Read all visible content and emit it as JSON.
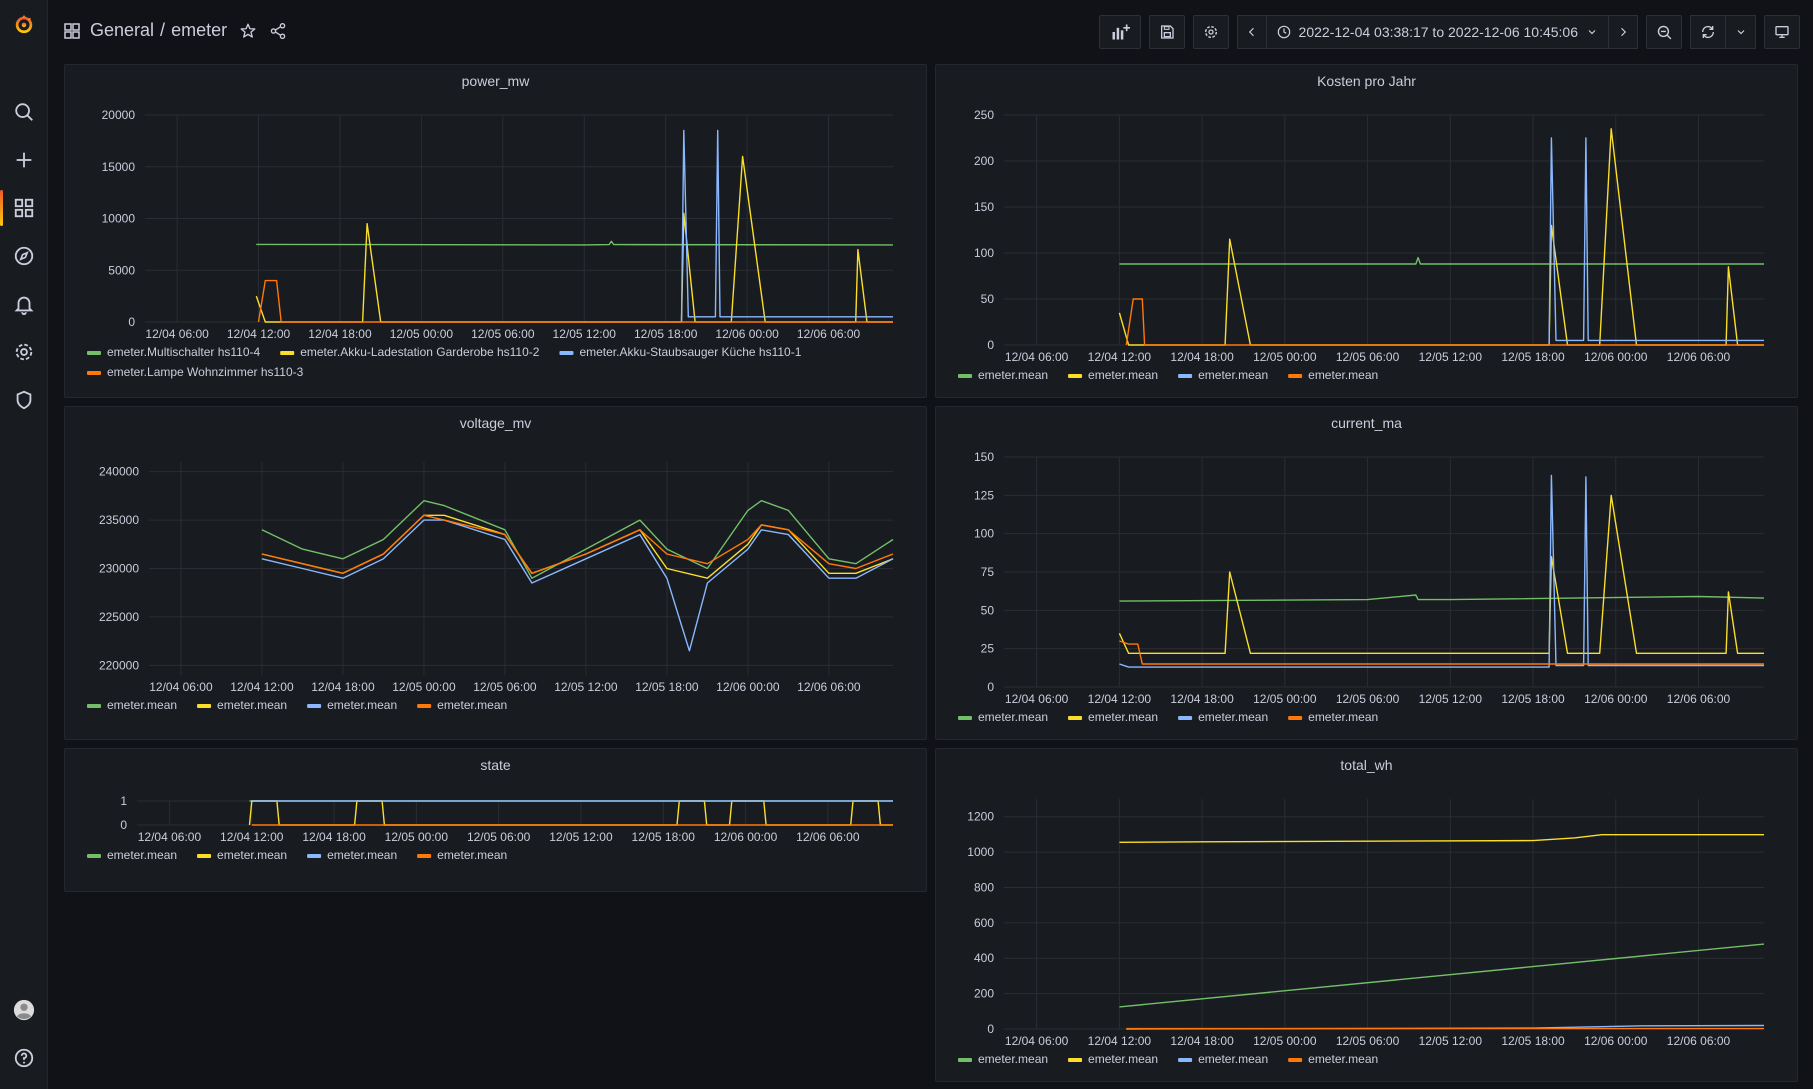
{
  "breadcrumb": {
    "folder": "General",
    "separator": "/",
    "dashboard": "emeter"
  },
  "time_range": {
    "label": "2022-12-04 03:38:17 to 2022-12-06 10:45:06"
  },
  "colors": {
    "green": "#73bf69",
    "yellow": "#fade2a",
    "blue": "#8ab8ff",
    "orange": "#ff780a"
  },
  "sidemenu": {
    "items": [
      {
        "name": "search-icon"
      },
      {
        "name": "plus-icon"
      },
      {
        "name": "dashboards-icon"
      },
      {
        "name": "explore-icon"
      },
      {
        "name": "bell-icon"
      },
      {
        "name": "gear-icon"
      },
      {
        "name": "shield-icon"
      }
    ]
  },
  "panels": [
    {
      "id": "power_mw",
      "chart_data": {
        "type": "line",
        "title": "power_mw",
        "xlim": [
          "2022-12-04 03:38",
          "2022-12-06 10:45"
        ],
        "ylim": [
          0,
          20000
        ],
        "yticks": [
          "0",
          "5000",
          "10000",
          "15000",
          "20000"
        ],
        "xticks": [
          "12/04 06:00",
          "12/04 12:00",
          "12/04 18:00",
          "12/05 00:00",
          "12/05 06:00",
          "12/05 12:00",
          "12/05 18:00",
          "12/06 00:00",
          "12/06 06:00"
        ],
        "legend": "bottom",
        "series": [
          {
            "name": "emeter.Multischalter hs110-4",
            "color": "green",
            "x": [
              "12/04 11:50",
              "12/05 12:00",
              "12/05 13:50",
              "12/05 14:00",
              "12/05 14:10",
              "12/06 10:45"
            ],
            "y": [
              7500,
              7450,
              7480,
              7800,
              7480,
              7450
            ]
          },
          {
            "name": "emeter.Akku-Ladestation Garderobe hs110-2",
            "color": "yellow",
            "x": [
              "12/04 11:50",
              "12/04 12:30",
              "12/04 19:40",
              "12/04 20:00",
              "12/04 21:00",
              "12/05 19:10",
              "12/05 19:20",
              "12/05 20:10",
              "12/05 22:50",
              "12/05 23:40",
              "12/06 01:20",
              "12/06 08:00",
              "12/06 08:10",
              "12/06 08:50",
              "12/06 10:45"
            ],
            "y": [
              2500,
              0,
              0,
              9500,
              0,
              0,
              10500,
              0,
              0,
              16000,
              0,
              0,
              7000,
              0,
              0
            ]
          },
          {
            "name": "emeter.Akku-Staubsauger Küche hs110-1",
            "color": "blue",
            "x": [
              "12/05 19:10",
              "12/05 19:20",
              "12/05 19:40",
              "12/05 21:40",
              "12/05 21:50",
              "12/05 22:00",
              "12/06 10:45"
            ],
            "y": [
              0,
              18500,
              500,
              500,
              18500,
              500,
              500
            ]
          },
          {
            "name": "emeter.Lampe Wohnzimmer hs110-3",
            "color": "orange",
            "x": [
              "12/04 12:00",
              "12/04 12:30",
              "12/04 13:20",
              "12/04 13:40",
              "12/06 10:45"
            ],
            "y": [
              0,
              4000,
              4000,
              0,
              0
            ]
          }
        ]
      }
    },
    {
      "id": "kosten",
      "chart_data": {
        "type": "line",
        "title": "Kosten pro Jahr",
        "xlim": [
          "2022-12-04 03:38",
          "2022-12-06 10:45"
        ],
        "ylim": [
          0,
          250
        ],
        "yticks": [
          "0",
          "50",
          "100",
          "150",
          "200",
          "250"
        ],
        "xticks": [
          "12/04 06:00",
          "12/04 12:00",
          "12/04 18:00",
          "12/05 00:00",
          "12/05 06:00",
          "12/05 12:00",
          "12/05 18:00",
          "12/06 00:00",
          "12/06 06:00"
        ],
        "legend": "bottom",
        "series": [
          {
            "name": "emeter.mean",
            "color": "green",
            "x": [
              "12/04 12:00",
              "12/05 09:30",
              "12/05 09:40",
              "12/05 09:50",
              "12/06 10:45"
            ],
            "y": [
              88,
              88,
              95,
              88,
              88
            ]
          },
          {
            "name": "emeter.mean",
            "color": "yellow",
            "x": [
              "12/04 12:00",
              "12/04 12:40",
              "12/04 19:40",
              "12/04 20:00",
              "12/04 21:30",
              "12/05 19:10",
              "12/05 19:20",
              "12/05 20:30",
              "12/05 22:50",
              "12/05 23:40",
              "12/06 01:30",
              "12/06 08:00",
              "12/06 08:10",
              "12/06 08:50",
              "12/06 10:45"
            ],
            "y": [
              35,
              0,
              0,
              115,
              0,
              0,
              130,
              0,
              0,
              235,
              0,
              0,
              85,
              0,
              0
            ]
          },
          {
            "name": "emeter.mean",
            "color": "blue",
            "x": [
              "12/05 19:10",
              "12/05 19:20",
              "12/05 19:40",
              "12/05 21:40",
              "12/05 21:50",
              "12/05 22:00",
              "12/06 10:45"
            ],
            "y": [
              0,
              225,
              5,
              5,
              225,
              5,
              5
            ]
          },
          {
            "name": "emeter.mean",
            "color": "orange",
            "x": [
              "12/04 12:30",
              "12/04 13:00",
              "12/04 13:40",
              "12/04 13:50",
              "12/06 10:45"
            ],
            "y": [
              0,
              50,
              50,
              0,
              0
            ]
          }
        ]
      }
    },
    {
      "id": "voltage_mv",
      "chart_data": {
        "type": "line",
        "title": "voltage_mv",
        "xlim": [
          "2022-12-04 03:38",
          "2022-12-06 10:45"
        ],
        "ylim": [
          219000,
          241000
        ],
        "yticks": [
          "220000",
          "225000",
          "230000",
          "235000",
          "240000"
        ],
        "xticks": [
          "12/04 06:00",
          "12/04 12:00",
          "12/04 18:00",
          "12/05 00:00",
          "12/05 06:00",
          "12/05 12:00",
          "12/05 18:00",
          "12/06 00:00",
          "12/06 06:00"
        ],
        "legend": "bottom",
        "series": [
          {
            "name": "emeter.mean",
            "color": "green",
            "x": [
              "12/04 12:00",
              "12/04 15:00",
              "12/04 18:00",
              "12/04 21:00",
              "12/05 00:00",
              "12/05 01:30",
              "12/05 06:00",
              "12/05 08:00",
              "12/05 12:00",
              "12/05 16:00",
              "12/05 18:00",
              "12/05 21:00",
              "12/06 00:00",
              "12/06 01:00",
              "12/06 03:00",
              "12/06 06:00",
              "12/06 08:00",
              "12/06 10:45"
            ],
            "y": [
              234000,
              232000,
              231000,
              233000,
              237000,
              236500,
              234000,
              229000,
              232000,
              235000,
              232000,
              230000,
              236000,
              237000,
              236000,
              231000,
              230500,
              233000
            ]
          },
          {
            "name": "emeter.mean",
            "color": "yellow",
            "x": [
              "12/04 12:00",
              "12/04 15:00",
              "12/04 18:00",
              "12/04 21:00",
              "12/05 00:00",
              "12/05 01:30",
              "12/05 06:00",
              "12/05 08:00",
              "12/05 12:00",
              "12/05 16:00",
              "12/05 18:00",
              "12/05 21:00",
              "12/06 00:00",
              "12/06 01:00",
              "12/06 03:00",
              "12/06 06:00",
              "12/06 08:00",
              "12/06 10:45"
            ],
            "y": [
              231500,
              230500,
              229500,
              231500,
              235500,
              235500,
              233500,
              229500,
              231500,
              234000,
              230000,
              229000,
              232500,
              234500,
              234000,
              229500,
              229500,
              231000
            ]
          },
          {
            "name": "emeter.mean",
            "color": "blue",
            "x": [
              "12/04 12:00",
              "12/04 15:00",
              "12/04 18:00",
              "12/04 21:00",
              "12/05 00:00",
              "12/05 01:30",
              "12/05 06:00",
              "12/05 08:00",
              "12/05 12:00",
              "12/05 16:00",
              "12/05 18:00",
              "12/05 19:40",
              "12/05 21:00",
              "12/06 00:00",
              "12/06 01:00",
              "12/06 03:00",
              "12/06 06:00",
              "12/06 08:00",
              "12/06 10:45"
            ],
            "y": [
              231000,
              230000,
              229000,
              231000,
              235000,
              235000,
              233000,
              228500,
              231000,
              233500,
              229000,
              221500,
              228500,
              232000,
              234000,
              233500,
              229000,
              229000,
              231000
            ]
          },
          {
            "name": "emeter.mean",
            "color": "orange",
            "x": [
              "12/04 12:00",
              "12/04 15:00",
              "12/04 18:00",
              "12/04 21:00",
              "12/05 00:00",
              "12/05 01:30",
              "12/05 06:00",
              "12/05 08:00",
              "12/05 12:00",
              "12/05 16:00",
              "12/05 18:00",
              "12/05 21:00",
              "12/06 00:00",
              "12/06 01:00",
              "12/06 03:00",
              "12/06 06:00",
              "12/06 08:00",
              "12/06 10:45"
            ],
            "y": [
              231500,
              230500,
              229500,
              231500,
              235500,
              235000,
              233500,
              229500,
              231500,
              234000,
              231500,
              230500,
              233000,
              234500,
              234000,
              230500,
              230000,
              231500
            ]
          }
        ]
      }
    },
    {
      "id": "current_ma",
      "chart_data": {
        "type": "line",
        "title": "current_ma",
        "xlim": [
          "2022-12-04 03:38",
          "2022-12-06 10:45"
        ],
        "ylim": [
          0,
          150
        ],
        "yticks": [
          "0",
          "25",
          "50",
          "75",
          "100",
          "125",
          "150"
        ],
        "xticks": [
          "12/04 06:00",
          "12/04 12:00",
          "12/04 18:00",
          "12/05 00:00",
          "12/05 06:00",
          "12/05 12:00",
          "12/05 18:00",
          "12/06 00:00",
          "12/06 06:00"
        ],
        "legend": "bottom",
        "series": [
          {
            "name": "emeter.mean",
            "color": "green",
            "x": [
              "12/04 12:00",
              "12/05 06:00",
              "12/05 09:30",
              "12/05 09:40",
              "12/05 12:00",
              "12/06 06:00",
              "12/06 10:45"
            ],
            "y": [
              56,
              57,
              60,
              57,
              57,
              59,
              58
            ]
          },
          {
            "name": "emeter.mean",
            "color": "yellow",
            "x": [
              "12/04 12:00",
              "12/04 12:40",
              "12/04 19:40",
              "12/04 20:00",
              "12/04 21:30",
              "12/05 19:10",
              "12/05 19:20",
              "12/05 20:30",
              "12/05 22:50",
              "12/05 23:40",
              "12/06 01:30",
              "12/06 08:00",
              "12/06 08:10",
              "12/06 08:50",
              "12/06 10:45"
            ],
            "y": [
              35,
              22,
              22,
              75,
              22,
              22,
              85,
              22,
              22,
              125,
              22,
              22,
              62,
              22,
              22
            ]
          },
          {
            "name": "emeter.mean",
            "color": "blue",
            "x": [
              "12/04 12:00",
              "12/04 12:40",
              "12/05 19:10",
              "12/05 19:20",
              "12/05 19:40",
              "12/05 21:40",
              "12/05 21:50",
              "12/05 22:00",
              "12/06 10:45"
            ],
            "y": [
              15,
              13,
              13,
              138,
              14,
              14,
              137,
              14,
              14
            ]
          },
          {
            "name": "emeter.mean",
            "color": "orange",
            "x": [
              "12/04 12:00",
              "12/04 12:40",
              "12/04 13:20",
              "12/04 13:40",
              "12/06 10:45"
            ],
            "y": [
              30,
              28,
              28,
              15,
              15
            ]
          }
        ]
      }
    },
    {
      "id": "state",
      "chart_data": {
        "type": "line",
        "title": "state",
        "xlim": [
          "2022-12-04 03:38",
          "2022-12-06 10:45"
        ],
        "ylim": [
          0,
          1
        ],
        "yticks": [
          "0",
          "1"
        ],
        "xticks": [
          "12/04 06:00",
          "12/04 12:00",
          "12/04 18:00",
          "12/05 00:00",
          "12/05 06:00",
          "12/05 12:00",
          "12/05 18:00",
          "12/06 00:00",
          "12/06 06:00"
        ],
        "legend": "bottom",
        "series": [
          {
            "name": "emeter.mean",
            "color": "green",
            "x": [
              "12/04 11:50",
              "12/05 01:40",
              "12/05 04:50",
              "12/05 21:50",
              "12/06 06:00",
              "12/06 10:45"
            ],
            "y": [
              1,
              1,
              1,
              1,
              1,
              1
            ]
          },
          {
            "name": "emeter.mean",
            "color": "yellow",
            "x": [
              "12/04 11:50",
              "12/04 12:00",
              "12/04 13:50",
              "12/04 14:00",
              "12/04 19:30",
              "12/04 19:40",
              "12/04 21:30",
              "12/04 21:40",
              "12/05 19:00",
              "12/05 19:10",
              "12/05 21:00",
              "12/05 21:10",
              "12/05 22:50",
              "12/05 23:00",
              "12/06 01:20",
              "12/06 01:30",
              "12/06 07:40",
              "12/06 07:50",
              "12/06 09:40",
              "12/06 09:50",
              "12/06 10:45"
            ],
            "y": [
              0,
              1,
              1,
              0,
              0,
              1,
              1,
              0,
              0,
              1,
              1,
              0,
              0,
              1,
              1,
              0,
              0,
              1,
              1,
              0,
              0
            ]
          },
          {
            "name": "emeter.mean",
            "color": "blue",
            "x": [
              "12/04 12:00",
              "12/05 01:40",
              "12/05 04:50",
              "12/05 21:50",
              "12/06 07:40",
              "12/06 10:45"
            ],
            "y": [
              1,
              1,
              1,
              1,
              1,
              1
            ]
          },
          {
            "name": "emeter.mean",
            "color": "orange",
            "x": [
              "12/04 12:00",
              "12/06 10:45"
            ],
            "y": [
              0,
              0
            ]
          }
        ]
      }
    },
    {
      "id": "total_wh",
      "chart_data": {
        "type": "line",
        "title": "total_wh",
        "xlim": [
          "2022-12-04 03:38",
          "2022-12-06 10:45"
        ],
        "ylim": [
          0,
          1300
        ],
        "yticks": [
          "0",
          "200",
          "400",
          "600",
          "800",
          "1000",
          "1200"
        ],
        "xticks": [
          "12/04 06:00",
          "12/04 12:00",
          "12/04 18:00",
          "12/05 00:00",
          "12/05 06:00",
          "12/05 12:00",
          "12/05 18:00",
          "12/06 00:00",
          "12/06 06:00"
        ],
        "legend": "bottom",
        "series": [
          {
            "name": "emeter.mean",
            "color": "green",
            "x": [
              "12/04 12:00",
              "12/06 10:45"
            ],
            "y": [
              125,
              480
            ]
          },
          {
            "name": "emeter.mean",
            "color": "yellow",
            "x": [
              "12/04 12:00",
              "12/04 18:00",
              "12/05 18:00",
              "12/05 21:00",
              "12/05 23:00",
              "12/06 10:45"
            ],
            "y": [
              1055,
              1058,
              1065,
              1080,
              1098,
              1098
            ]
          },
          {
            "name": "emeter.mean",
            "color": "blue",
            "x": [
              "12/04 12:30",
              "12/05 18:00",
              "12/06 02:00",
              "12/06 10:45"
            ],
            "y": [
              0,
              5,
              18,
              20
            ]
          },
          {
            "name": "emeter.mean",
            "color": "orange",
            "x": [
              "12/04 12:30",
              "12/06 10:45"
            ],
            "y": [
              2,
              2
            ]
          }
        ]
      }
    }
  ]
}
